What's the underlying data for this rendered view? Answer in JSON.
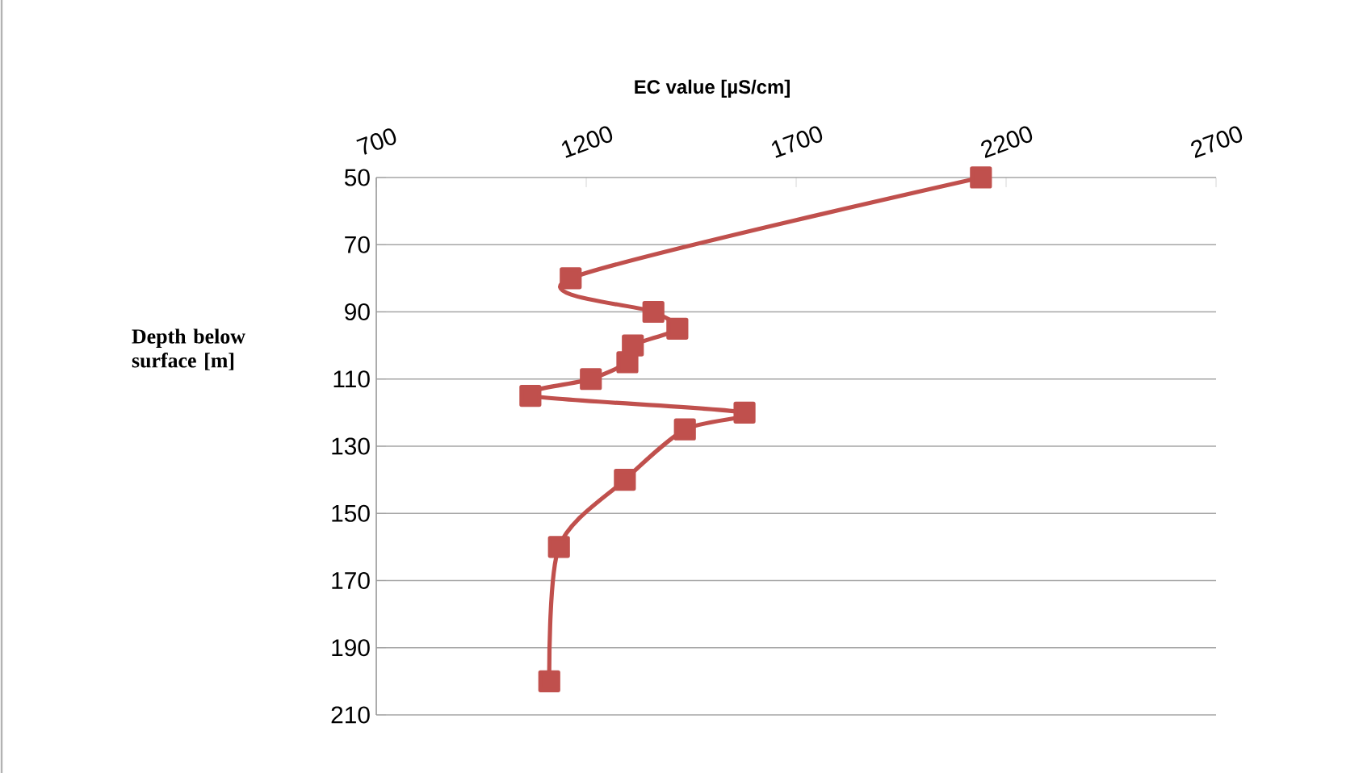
{
  "chart_data": {
    "type": "line",
    "xlabel": "EC value [µS/cm]",
    "ylabel": "Depth below surface [m]",
    "xlim": [
      700,
      2700
    ],
    "xticks": [
      700,
      1200,
      1700,
      2200,
      2700
    ],
    "ylim": [
      210,
      50
    ],
    "yticks": [
      50,
      70,
      90,
      110,
      130,
      150,
      170,
      190,
      210
    ],
    "grid": "y",
    "marker": "square",
    "line_style": "solid",
    "series": [
      {
        "color": "#c0504d",
        "x": [
          2140,
          1163,
          1360,
          1417,
          1311,
          1298,
          1211,
          1067,
          1577,
          1435,
          1292,
          1135,
          1112
        ],
        "values": [
          50,
          80,
          90,
          95,
          100,
          105,
          110,
          115,
          120,
          125,
          140,
          160,
          200
        ]
      }
    ]
  }
}
